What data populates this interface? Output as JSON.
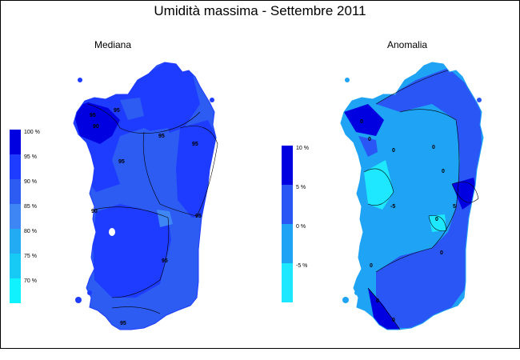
{
  "title": "Umidità massima - Settembre 2011",
  "panels": [
    {
      "name": "Mediana",
      "legend": [
        {
          "label": "100 %",
          "color": "#0000e0"
        },
        {
          "label": "95 %",
          "color": "#1e3cff"
        },
        {
          "label": "90 %",
          "color": "#2c5cf2"
        },
        {
          "label": "85 %",
          "color": "#3f86f5"
        },
        {
          "label": "80 %",
          "color": "#22aaf2"
        },
        {
          "label": "75 %",
          "color": "#17c9f5"
        },
        {
          "label": "70 %",
          "color": "#11f2ff"
        }
      ],
      "contour_labels": [
        "95",
        "90",
        "95",
        "95",
        "95",
        "95",
        "90",
        "95",
        "95",
        "95"
      ]
    },
    {
      "name": "Anomalia",
      "legend": [
        {
          "label": "10 %",
          "color": "#0000e0"
        },
        {
          "label": "5 %",
          "color": "#2a56f5"
        },
        {
          "label": "0 %",
          "color": "#1ea3f5"
        },
        {
          "label": "-5 %",
          "color": "#1ee8ff"
        }
      ],
      "contour_labels": [
        "0",
        "0",
        "0",
        "0",
        "0",
        "-5",
        "0",
        "0",
        "5",
        "0",
        "0",
        "0"
      ]
    }
  ]
}
